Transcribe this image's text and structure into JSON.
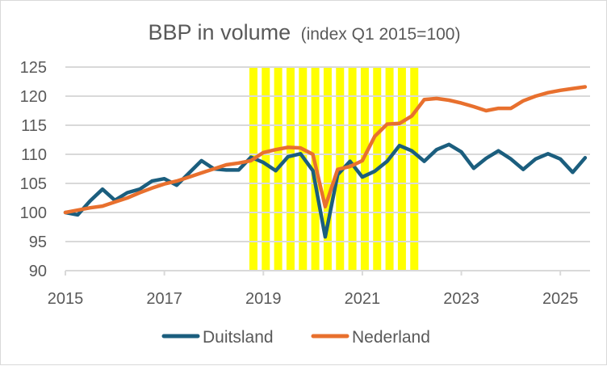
{
  "chart_data": {
    "type": "line",
    "title": "BBP in volume",
    "subtitle": "(index Q1 2015=100)",
    "xlabel": "",
    "ylabel": "",
    "ylim": [
      90,
      125
    ],
    "yticks": [
      90,
      95,
      100,
      105,
      110,
      115,
      120,
      125
    ],
    "ytick_labels": [
      "90",
      "95",
      "100",
      "105",
      "110",
      "115",
      "120",
      "125"
    ],
    "xtick_labels": [
      "2015",
      "2017",
      "2019",
      "2021",
      "2023",
      "2025"
    ],
    "xtick_years": [
      2015,
      2017,
      2019,
      2021,
      2023,
      2025
    ],
    "x_start": "2015Q1",
    "x_frequency": "quarterly",
    "grid": "horizontal",
    "legend_position": "bottom",
    "highlight_bars": {
      "description": "yellow shaded quarterly columns",
      "color": "#ffff00",
      "from_quarter_index": 15,
      "to_quarter_index": 28,
      "value": 125
    },
    "series": [
      {
        "name": "Duitsland",
        "color": "#1b5e7e",
        "values": [
          100.0,
          99.6,
          102.0,
          104.0,
          102.1,
          103.4,
          104.0,
          105.4,
          105.8,
          104.7,
          106.8,
          108.9,
          107.5,
          107.3,
          107.3,
          109.5,
          108.6,
          107.2,
          109.6,
          110.1,
          107.2,
          95.8,
          106.5,
          108.8,
          106.1,
          107.1,
          108.8,
          111.5,
          110.6,
          108.8,
          110.8,
          111.7,
          110.4,
          107.6,
          109.3,
          110.6,
          109.2,
          107.4,
          109.2,
          110.1,
          109.2,
          106.9,
          109.4
        ]
      },
      {
        "name": "Nederland",
        "color": "#e8702e",
        "values": [
          100.0,
          100.4,
          100.8,
          101.1,
          101.8,
          102.5,
          103.4,
          104.2,
          104.9,
          105.4,
          106.1,
          106.8,
          107.5,
          108.2,
          108.5,
          108.9,
          110.3,
          110.8,
          111.2,
          111.1,
          110.0,
          101.0,
          107.4,
          107.9,
          108.9,
          113.1,
          115.2,
          115.3,
          116.6,
          119.4,
          119.6,
          119.3,
          118.8,
          118.2,
          117.5,
          117.9,
          117.9,
          119.2,
          120.0,
          120.6,
          121.0,
          121.3,
          121.6
        ]
      }
    ]
  }
}
